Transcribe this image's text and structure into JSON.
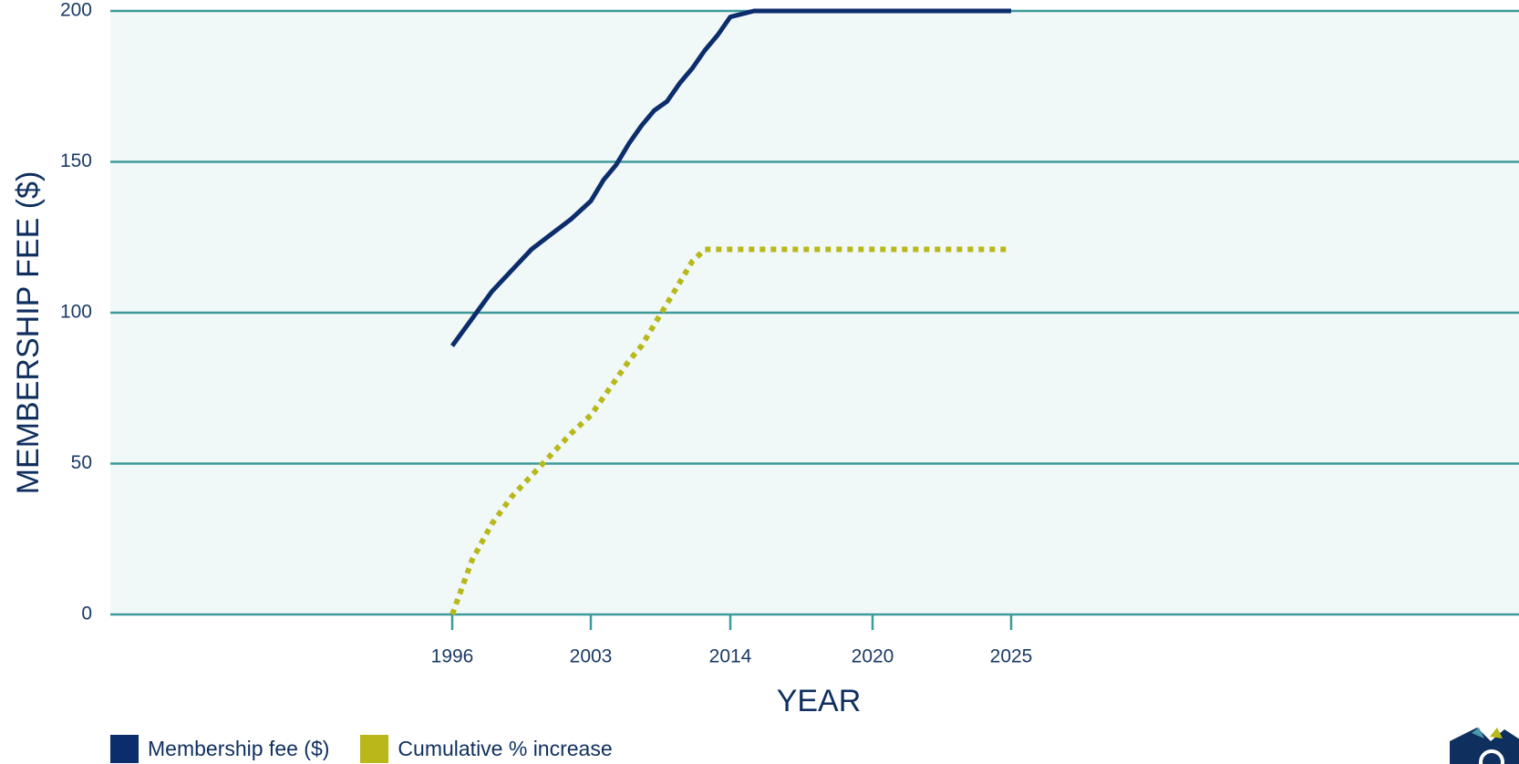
{
  "chart_data": {
    "type": "line",
    "xlabel": "YEAR",
    "ylabel": "MEMBERSHIP FEE ($)",
    "ylim": [
      0,
      200
    ],
    "yticks": [
      "0",
      "50",
      "100",
      "150",
      "200"
    ],
    "xticks": [
      "1996",
      "2003",
      "2014",
      "2020",
      "2025"
    ],
    "grid": true,
    "legend_position": "bottom-left",
    "series": [
      {
        "name": "Membership fee ($)",
        "color": "#0b2d6b",
        "style": "solid",
        "x": [
          1996,
          1997,
          1998,
          1999,
          2000,
          2001,
          2002,
          2003,
          2004,
          2005,
          2006,
          2007,
          2008,
          2009,
          2010,
          2011,
          2012,
          2013,
          2014,
          2015,
          2016,
          2017,
          2018,
          2019,
          2020,
          2021,
          2022,
          2023,
          2024,
          2025
        ],
        "y": [
          89,
          98,
          107,
          114,
          121,
          126,
          131,
          137,
          144,
          149,
          156,
          162,
          167,
          170,
          176,
          181,
          187,
          192,
          198,
          200,
          200,
          200,
          200,
          200,
          200,
          200,
          200,
          200,
          200,
          200
        ]
      },
      {
        "name": "Cumulative % increase",
        "color": "#b8b81a",
        "style": "dotted",
        "x": [
          1996,
          1997,
          1998,
          1999,
          2000,
          2001,
          2002,
          2003,
          2004,
          2005,
          2006,
          2007,
          2008,
          2009,
          2010,
          2011,
          2012,
          2013,
          2014,
          2015,
          2016,
          2017,
          2018,
          2019,
          2020,
          2021,
          2022,
          2023,
          2024,
          2025
        ],
        "y": [
          0,
          18,
          30,
          39,
          46,
          53,
          60,
          66,
          72,
          78,
          84,
          89,
          96,
          103,
          110,
          117,
          121,
          121,
          121,
          121,
          121,
          121,
          121,
          121,
          121,
          121,
          121,
          121,
          121,
          121
        ]
      }
    ]
  }
}
